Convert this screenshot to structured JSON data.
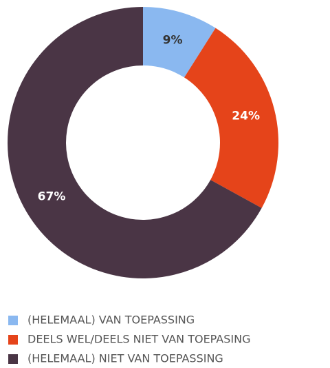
{
  "chart_data": {
    "type": "pie",
    "donut": true,
    "categories": [
      "(HELEMAAL) VAN TOEPASSING",
      "DEELS WEL/DEELS NIET VAN TOEPASING",
      "(HELEMAAL) NIET VAN TOEPASSING"
    ],
    "values": [
      9,
      24,
      67
    ],
    "value_labels": [
      "9%",
      "24%",
      "67%"
    ],
    "colors": [
      "#8ab8f0",
      "#e5441a",
      "#4a3545"
    ],
    "legend": "bottom"
  }
}
